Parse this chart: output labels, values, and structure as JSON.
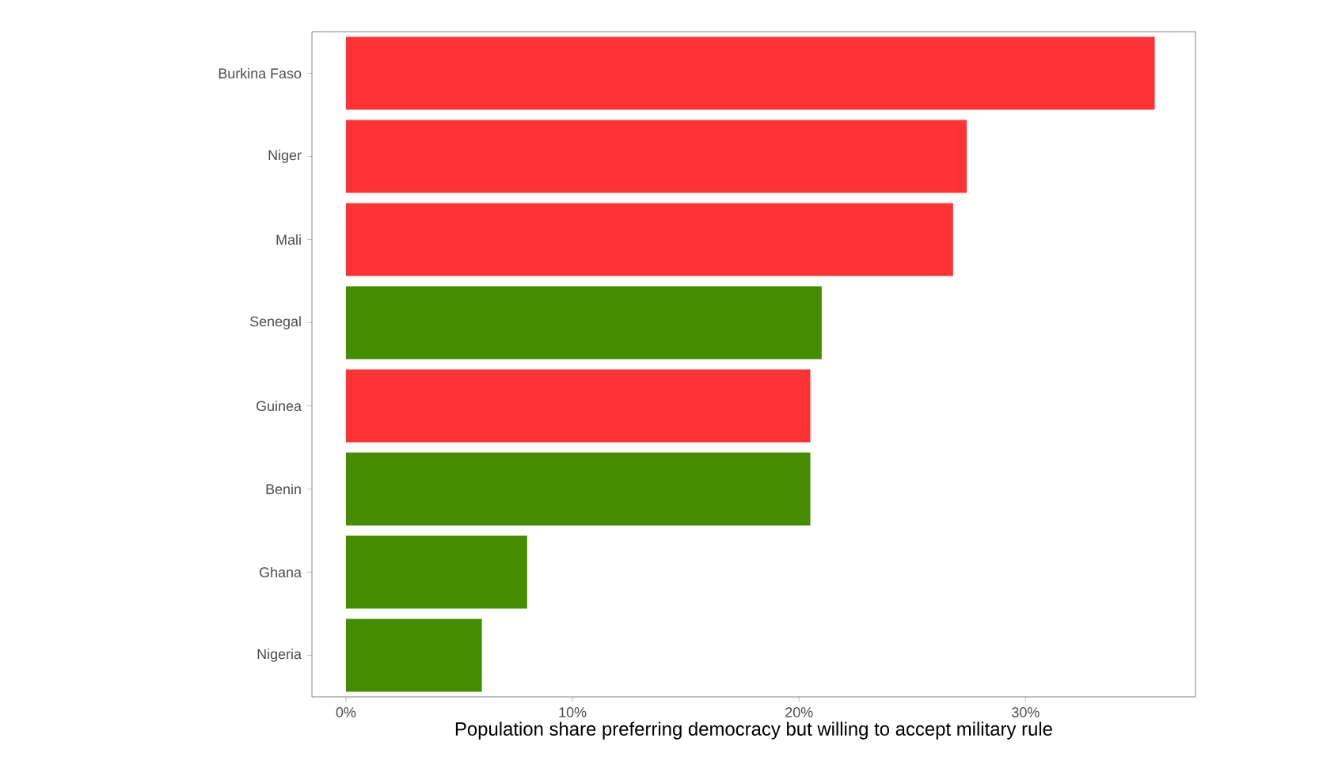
{
  "chart_data": {
    "type": "bar",
    "orientation": "horizontal",
    "xlabel": "Population share preferring democracy but willing to accept military rule",
    "categories": [
      "Burkina Faso",
      "Niger",
      "Mali",
      "Senegal",
      "Guinea",
      "Benin",
      "Ghana",
      "Nigeria"
    ],
    "values": [
      35.7,
      27.4,
      26.8,
      21.0,
      20.5,
      20.5,
      8.0,
      6.0
    ],
    "colors": [
      "#ff3333",
      "#ff3333",
      "#ff3333",
      "#448c00",
      "#ff3333",
      "#448c00",
      "#448c00",
      "#448c00"
    ],
    "xlim": [
      -1.5,
      37.5
    ],
    "xticks": [
      {
        "value": 0,
        "label": "0%"
      },
      {
        "value": 10,
        "label": "10%"
      },
      {
        "value": 20,
        "label": "20%"
      },
      {
        "value": 30,
        "label": "30%"
      }
    ],
    "grid": false
  }
}
